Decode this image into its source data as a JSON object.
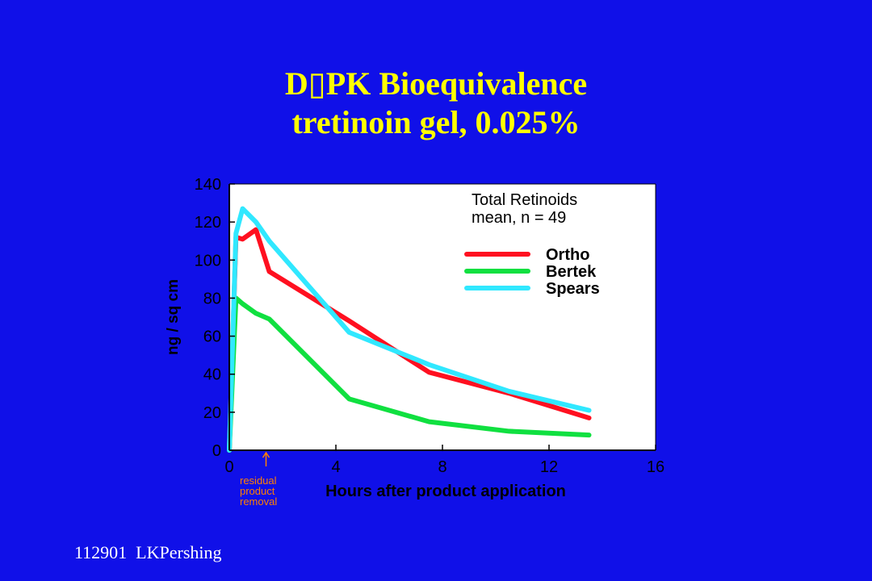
{
  "colors": {
    "background": "#1010e8",
    "title": "#ffff00",
    "axis": "#000000",
    "plot_bg": "#ffffff",
    "annotation": "#ff8000"
  },
  "slide": {
    "title_line1": "D▯PK Bioequivalence",
    "title_line2": "tretinoin gel, 0.025%",
    "footer": "112901  LKPershing"
  },
  "chart_data": {
    "type": "line",
    "xlabel": "Hours after product application",
    "ylabel": "ng / sq cm",
    "xlim": [
      0,
      16
    ],
    "ylim": [
      0,
      140
    ],
    "xticks": [
      0,
      4,
      8,
      12,
      16
    ],
    "yticks": [
      0,
      20,
      40,
      60,
      80,
      100,
      120,
      140
    ],
    "grid": false,
    "legend_title_line1": "Total Retinoids",
    "legend_title_line2": "mean, n = 49",
    "legend_position": "top-right",
    "series": [
      {
        "name": "Ortho",
        "color": "#ff1020",
        "x": [
          0,
          0.25,
          0.5,
          1.0,
          1.5,
          4.5,
          7.5,
          10.5,
          13.5
        ],
        "y": [
          0,
          112,
          111,
          116,
          94,
          68,
          41,
          30,
          17
        ]
      },
      {
        "name": "Bertek",
        "color": "#10e040",
        "x": [
          0,
          0.25,
          0.5,
          1.0,
          1.5,
          4.5,
          7.5,
          10.5,
          13.5
        ],
        "y": [
          0,
          80,
          77,
          72,
          69,
          27,
          15,
          10,
          8
        ]
      },
      {
        "name": "Spears",
        "color": "#30e8ff",
        "x": [
          0,
          0.25,
          0.5,
          1.0,
          1.5,
          4.5,
          7.5,
          10.5,
          13.5
        ],
        "y": [
          0,
          114,
          127,
          120,
          110,
          62,
          45,
          31,
          21
        ]
      }
    ],
    "annotation": {
      "lines": [
        "residual",
        "product",
        "removal"
      ],
      "x": 1.5
    }
  }
}
